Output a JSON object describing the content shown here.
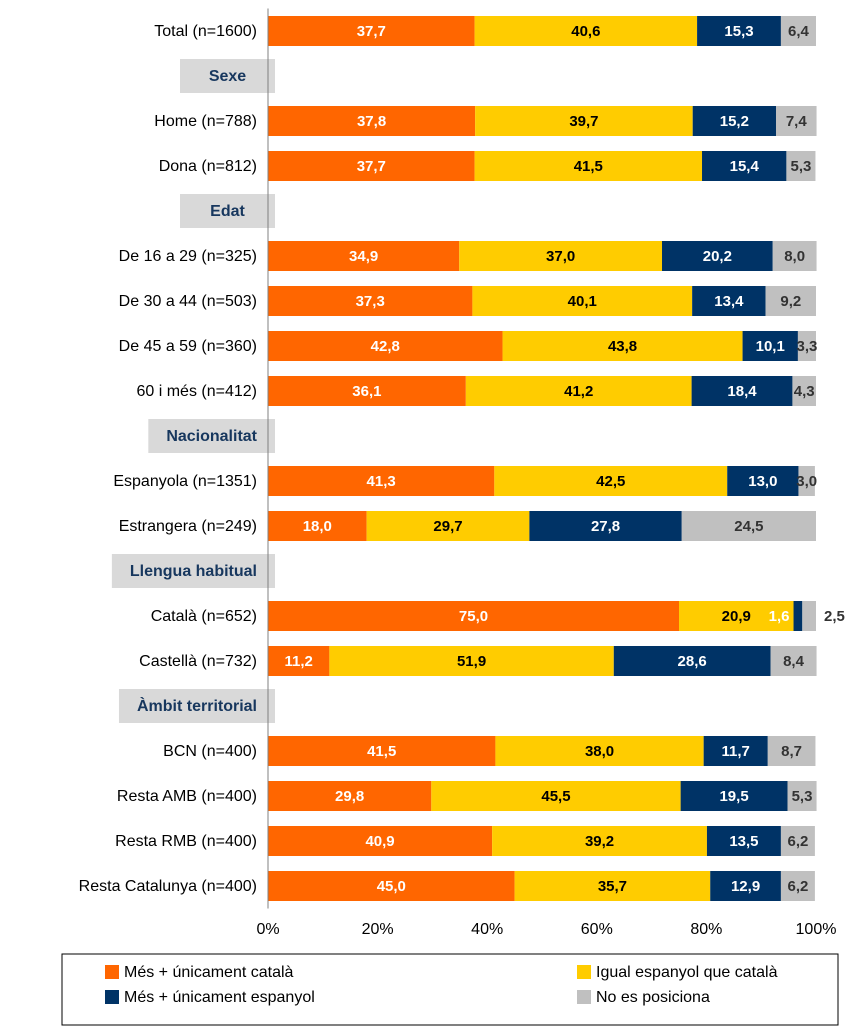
{
  "chart_data": {
    "type": "stacked-bar-horizontal",
    "categories": [
      "Total (n=1600)",
      "Sexe",
      "Home (n=788)",
      "Dona (n=812)",
      "Edat",
      "De 16 a 29 (n=325)",
      "De 30 a 44 (n=503)",
      "De 45 a 59 (n=360)",
      "60 i més (n=412)",
      "Nacionalitat",
      "Espanyola (n=1351)",
      "Estrangera (n=249)",
      "Llengua habitual",
      "Català (n=652)",
      "Castellà (n=732)",
      "Àmbit territorial",
      "BCN (n=400)",
      "Resta AMB (n=400)",
      "Resta RMB (n=400)",
      "Resta Catalunya (n=400)"
    ],
    "series": [
      {
        "name": "Més + únicament català",
        "color": "#ff6600",
        "label_color": "#ffffff",
        "values": [
          37.7,
          null,
          37.8,
          37.7,
          null,
          34.9,
          37.3,
          42.8,
          36.1,
          null,
          41.3,
          18.0,
          null,
          75.0,
          11.2,
          null,
          41.5,
          29.8,
          40.9,
          45.0
        ],
        "value_labels": [
          "37,7",
          null,
          "37,8",
          "37,7",
          null,
          "34,9",
          "37,3",
          "42,8",
          "36,1",
          null,
          "41,3",
          "18,0",
          null,
          "75,0",
          "11,2",
          null,
          "41,5",
          "29,8",
          "40,9",
          "45,0"
        ]
      },
      {
        "name": "Igual espanyol que català",
        "color": "#ffcc00",
        "label_color": "#000000",
        "values": [
          40.6,
          null,
          39.7,
          41.5,
          null,
          37.0,
          40.1,
          43.8,
          41.2,
          null,
          42.5,
          29.7,
          null,
          20.9,
          51.9,
          null,
          38.0,
          45.5,
          39.2,
          35.7
        ],
        "value_labels": [
          "40,6",
          null,
          "39,7",
          "41,5",
          null,
          "37,0",
          "40,1",
          "43,8",
          "41,2",
          null,
          "42,5",
          "29,7",
          null,
          "20,9",
          "51,9",
          null,
          "38,0",
          "45,5",
          "39,2",
          "35,7"
        ]
      },
      {
        "name": "Més + únicament espanyol",
        "color": "#003366",
        "label_color": "#ffffff",
        "values": [
          15.3,
          null,
          15.2,
          15.4,
          null,
          20.2,
          13.4,
          10.1,
          18.4,
          null,
          13.0,
          27.8,
          null,
          1.6,
          28.6,
          null,
          11.7,
          19.5,
          13.5,
          12.9
        ],
        "value_labels": [
          "15,3",
          null,
          "15,2",
          "15,4",
          null,
          "20,2",
          "13,4",
          "10,1",
          "18,4",
          null,
          "13,0",
          "27,8",
          null,
          "1,6",
          "28,6",
          null,
          "11,7",
          "19,5",
          "13,5",
          "12,9"
        ]
      },
      {
        "name": "No es posiciona",
        "color": "#c0c0c0",
        "label_color": "#333333",
        "values": [
          6.4,
          null,
          7.4,
          5.3,
          null,
          8.0,
          9.2,
          3.3,
          4.3,
          null,
          3.0,
          24.5,
          null,
          2.5,
          8.4,
          null,
          8.7,
          5.3,
          6.2,
          6.2
        ],
        "value_labels": [
          "6,4",
          null,
          "7,4",
          "5,3",
          null,
          "8,0",
          "9,2",
          "3,3",
          "4,3",
          null,
          "3,0",
          "24,5",
          null,
          "2,5",
          "8,4",
          null,
          "8,7",
          "5,3",
          "6,2",
          "6,2"
        ]
      }
    ],
    "xlim": [
      0,
      100
    ],
    "xticks": [
      {
        "value": 0,
        "label": "0%"
      },
      {
        "value": 20,
        "label": "20%"
      },
      {
        "value": 40,
        "label": "40%"
      },
      {
        "value": 60,
        "label": "60%"
      },
      {
        "value": 80,
        "label": "80%"
      },
      {
        "value": 100,
        "label": "100%"
      }
    ],
    "grid": false
  }
}
